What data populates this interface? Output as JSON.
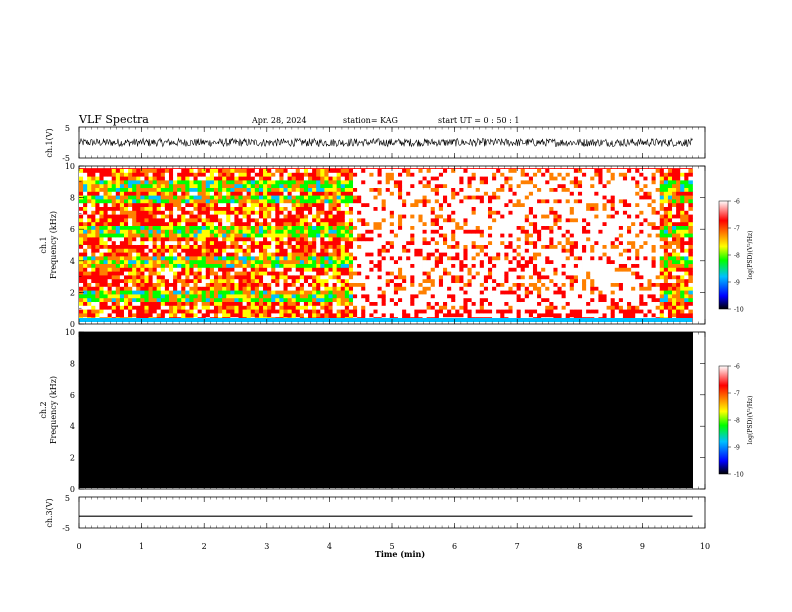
{
  "header": {
    "title": "VLF Spectra",
    "date": "Apr. 28, 2024",
    "station": "station= KAG",
    "start_time": "start UT =  0 : 50 : 1"
  },
  "colors": {
    "panel_bg": "#000000",
    "spectrogram_base": "#ffffff",
    "trace": "#000000",
    "colorbar_stops": [
      "#000000",
      "#0000ff",
      "#00c0ff",
      "#00ff00",
      "#ffff00",
      "#ff8000",
      "#ff0000",
      "#ffffff"
    ]
  },
  "chart_data": [
    {
      "type": "line",
      "panel": "ch1-waveform",
      "ylabel": "ch.1(V)",
      "ylim": [
        -5,
        5
      ],
      "y_ticks": [
        "5",
        "-5"
      ],
      "xlim": [
        0,
        10
      ],
      "note_series": "dense noisy waveform around 0 V with amplitude about ±1.3 V"
    },
    {
      "type": "heatmap",
      "panel": "ch1-spectrogram",
      "ylabel": "ch.1\nFrequency (kHz)",
      "ylim": [
        0,
        10
      ],
      "y_ticks": [
        "0",
        "2",
        "4",
        "6",
        "8",
        "10"
      ],
      "xlim": [
        0,
        10
      ],
      "colorbar": {
        "label": "log(PSD)(V²/Hz)",
        "range": [
          -10,
          -6
        ],
        "ticks": [
          "-6",
          "-7",
          "-8",
          "-9",
          "-10"
        ]
      }
    },
    {
      "type": "heatmap",
      "panel": "ch2-spectrogram",
      "ylabel": "ch.2\nFrequency (kHz)",
      "ylim": [
        0,
        10
      ],
      "y_ticks": [
        "0",
        "2",
        "4",
        "6",
        "8",
        "10"
      ],
      "xlim": [
        0,
        10
      ],
      "colorbar": {
        "label": "log(PSD)(V²/Hz)",
        "range": [
          -10,
          -6
        ],
        "ticks": [
          "-6",
          "-7",
          "-8",
          "-9",
          "-10"
        ]
      }
    },
    {
      "type": "line",
      "panel": "ch3-waveform",
      "ylabel": "ch.3(V)",
      "ylim": [
        -5,
        5
      ],
      "y_ticks": [
        "5",
        "-5"
      ],
      "xlim": [
        0,
        10
      ],
      "x": [
        0,
        9.8
      ],
      "y": [
        -1.2,
        -1.2
      ]
    }
  ],
  "xaxis": {
    "label": "Time (min)",
    "ticks": [
      "0",
      "1",
      "2",
      "3",
      "4",
      "5",
      "6",
      "7",
      "8",
      "9",
      "10"
    ]
  }
}
